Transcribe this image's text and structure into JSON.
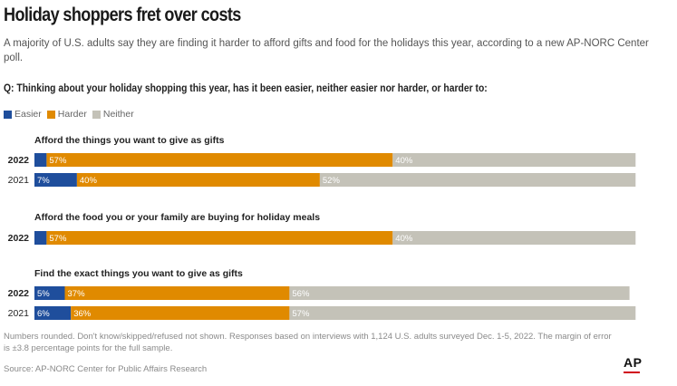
{
  "header": {
    "title": "Holiday shoppers fret over costs",
    "subtitle": "A majority of U.S. adults say they are finding it harder to afford gifts and food for the holidays this year, according to a new AP-NORC Center poll.",
    "question": "Q: Thinking about your holiday shopping this year, has it been easier, neither easier nor harder, or harder to:"
  },
  "colors": {
    "easier": "#1f4e9c",
    "harder": "#e08a00",
    "neither": "#c4c2b8"
  },
  "legend": [
    "Easier",
    "Harder",
    "Neither"
  ],
  "chart_data": {
    "type": "bar",
    "stacked": true,
    "orientation": "horizontal",
    "series_names": [
      "Easier",
      "Harder",
      "Neither"
    ],
    "groups": [
      {
        "label": "Afford the things you want to give as gifts",
        "rows": [
          {
            "year": "2022",
            "values": [
              2,
              57,
              40
            ],
            "labels": [
              "",
              "57%",
              "40%"
            ]
          },
          {
            "year": "2021",
            "values": [
              7,
              40,
              52
            ],
            "labels": [
              "7%",
              "40%",
              "52%"
            ]
          }
        ]
      },
      {
        "label": "Afford the food you or your family are buying for holiday meals",
        "rows": [
          {
            "year": "2022",
            "values": [
              2,
              57,
              40
            ],
            "labels": [
              "",
              "57%",
              "40%"
            ]
          }
        ]
      },
      {
        "label": "Find the exact things you want to give as gifts",
        "rows": [
          {
            "year": "2022",
            "values": [
              5,
              37,
              56
            ],
            "labels": [
              "5%",
              "37%",
              "56%"
            ]
          },
          {
            "year": "2021",
            "values": [
              6,
              36,
              57
            ],
            "labels": [
              "6%",
              "36%",
              "57%"
            ]
          }
        ]
      }
    ]
  },
  "footer": {
    "note": "Numbers rounded. Don't know/skipped/refused not shown. Responses based on interviews with 1,124 U.S. adults surveyed Dec. 1-5, 2022. The margin of error is ±3.8 percentage points for the full sample.",
    "source": "Source: AP-NORC Center for Public Affairs Research",
    "logo": "AP"
  }
}
